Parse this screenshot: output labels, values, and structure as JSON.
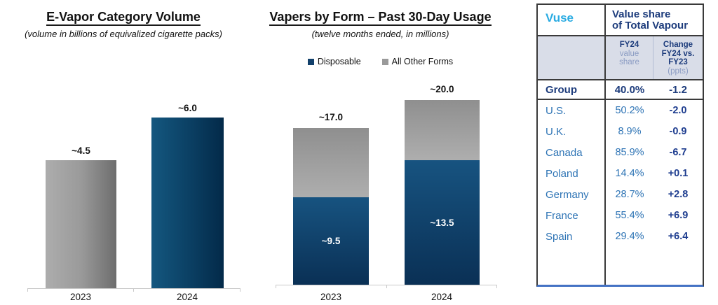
{
  "chart_data": [
    {
      "type": "bar",
      "title": "E-Vapor Category Volume",
      "subtitle": "(volume in billions of equivalized cigarette packs)",
      "categories": [
        "2023",
        "2024"
      ],
      "values": [
        4.5,
        6.0
      ],
      "value_labels": [
        "~4.5",
        "~6.0"
      ],
      "bar_colors": [
        "#9a9a9a",
        "#0b4064"
      ],
      "ylim": [
        0,
        7
      ],
      "grid": false,
      "legend_position": "none"
    },
    {
      "type": "stacked-bar",
      "title": "Vapers by Form – Past 30-Day Usage",
      "subtitle": "(twelve months ended, in millions)",
      "categories": [
        "2023",
        "2024"
      ],
      "series": [
        {
          "name": "Disposable",
          "values": [
            9.5,
            13.5
          ],
          "labels": [
            "~9.5",
            "~13.5"
          ],
          "color": "#0d3f6a"
        },
        {
          "name": "All Other Forms",
          "values": [
            7.5,
            6.5
          ],
          "color": "#9a9a9a"
        }
      ],
      "totals": [
        17.0,
        20.0
      ],
      "total_labels": [
        "~17.0",
        "~20.0"
      ],
      "ylim": [
        0,
        22
      ],
      "grid": false,
      "legend_position": "top"
    }
  ],
  "table": {
    "brand": "Vuse",
    "title_line1": "Value share",
    "title_line2": "of Total Vapour",
    "header": {
      "col2_bold": "FY24",
      "col2_sub1": "value",
      "col2_sub2": "share",
      "col3_line1": "Change",
      "col3_line2": "FY24 vs.",
      "col3_line3": "FY23",
      "col3_sub": "(ppts)"
    },
    "rows": [
      {
        "label": "Group",
        "share": "40.0%",
        "change": "-1.2"
      },
      {
        "label": "U.S.",
        "share": "50.2%",
        "change": "-2.0"
      },
      {
        "label": "U.K.",
        "share": "8.9%",
        "change": "-0.9"
      },
      {
        "label": "Canada",
        "share": "85.9%",
        "change": "-6.7"
      },
      {
        "label": "Poland",
        "share": "14.4%",
        "change": "+0.1"
      },
      {
        "label": "Germany",
        "share": "28.7%",
        "change": "+2.8"
      },
      {
        "label": "France",
        "share": "55.4%",
        "change": "+6.9"
      },
      {
        "label": "Spain",
        "share": "29.4%",
        "change": "+6.4"
      }
    ],
    "colors": {
      "brand_cyan": "#29abe2",
      "navy": "#1d3c7c",
      "row_blue": "#2e74b5",
      "change_navy": "#1e3d8f",
      "header_bg": "#d9dde8",
      "border_dark": "#3a3a3a",
      "border_bottom_blue": "#4472c4"
    }
  }
}
